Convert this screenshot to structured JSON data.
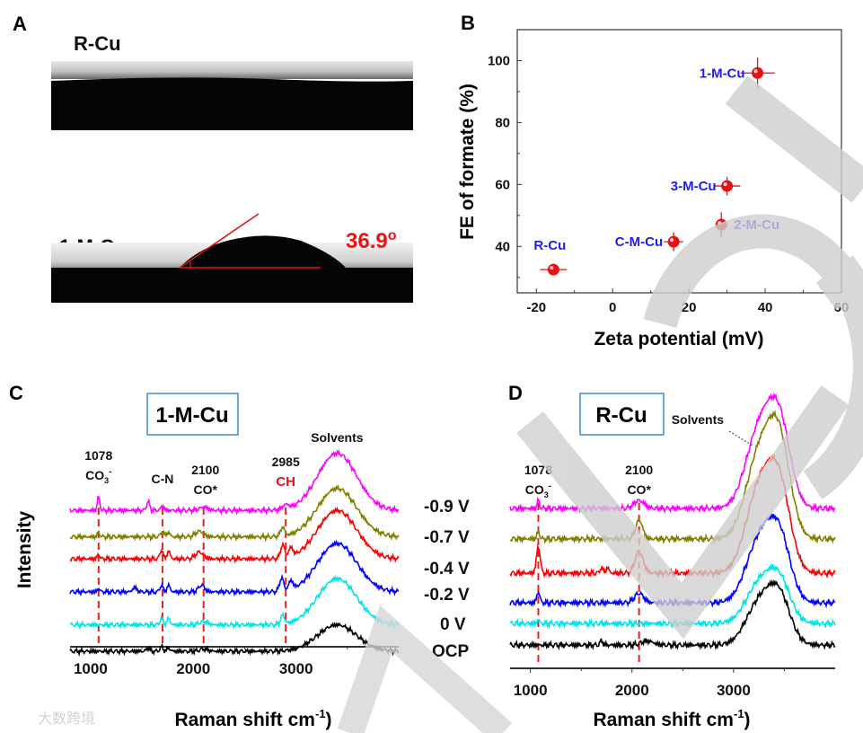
{
  "panel_a": {
    "letter": "A",
    "top_label": "R-Cu",
    "bottom_label": "1-M-Cu",
    "contact_angle": "36.9",
    "degree_symbol": "o"
  },
  "colors": {
    "marker": "#e81010",
    "label_blue": "#1c1cf0",
    "dash_red": "#e82020",
    "box_border": "#3b8fd0",
    "watermark": "#d0d0d0"
  },
  "chart_data": [
    {
      "id": "B",
      "letter": "B",
      "type": "scatter",
      "xlabel": "Zeta potential (mV)",
      "ylabel": "FE of formate (%)",
      "xlim": [
        -25,
        60
      ],
      "ylim": [
        25,
        110
      ],
      "xticks": [
        "-20",
        "0",
        "20",
        "40",
        "60"
      ],
      "xtick_values": [
        -20,
        0,
        20,
        40,
        60
      ],
      "yticks": [
        "40",
        "60",
        "80",
        "100"
      ],
      "ytick_values": [
        40,
        60,
        80,
        100
      ],
      "points": [
        {
          "label": "R-Cu",
          "x": -15.5,
          "y": 32.5,
          "xerr": 3.5,
          "yerr": 1.5
        },
        {
          "label": "C-M-Cu",
          "x": 16,
          "y": 41.5,
          "xerr": 2.5,
          "yerr": 3
        },
        {
          "label": "2-M-Cu",
          "x": 28.5,
          "y": 47,
          "xerr": 1.5,
          "yerr": 4
        },
        {
          "label": "3-M-Cu",
          "x": 30,
          "y": 59.5,
          "xerr": 3.5,
          "yerr": 3
        },
        {
          "label": "1-M-Cu",
          "x": 38,
          "y": 96,
          "xerr": 4.5,
          "yerr": 5
        }
      ]
    },
    {
      "id": "C",
      "letter": "C",
      "type": "line",
      "title": "1-M-Cu",
      "xlabel": "Raman shift",
      "xlabel_unit": "cm",
      "xlabel_exp": "-1",
      "ylabel": "Intensity",
      "xlim": [
        800,
        4000
      ],
      "ylim": [
        0,
        100
      ],
      "xticks": [
        "1000",
        "2000",
        "3000"
      ],
      "xtick_values": [
        1000,
        2000,
        3000
      ],
      "annotations": [
        {
          "lines": [
            "1078",
            "CO"
          ],
          "sub": "3",
          "sup": "-",
          "x": 1078
        },
        {
          "lines": [
            "C-N"
          ],
          "x": 1700
        },
        {
          "lines": [
            "2100",
            "CO*"
          ],
          "x": 2100
        },
        {
          "lines": [
            "2985",
            "CH"
          ],
          "x": 2900
        },
        {
          "lines": [
            "Solvents"
          ],
          "x": 3400
        }
      ],
      "dashed_markers": [
        1078,
        1700,
        2100,
        2900
      ],
      "series": [
        {
          "name": "-0.9 V",
          "color": "#ff00ff",
          "offset": 64,
          "peaks": [
            [
              1078,
              6,
              12
            ],
            [
              1560,
              4,
              15
            ],
            [
              1700,
              2,
              15
            ],
            [
              2100,
              1.5,
              40
            ],
            [
              2900,
              2,
              30
            ],
            [
              3400,
              26,
              190
            ]
          ]
        },
        {
          "name": "-0.7 V",
          "color": "#808000",
          "offset": 52,
          "peaks": [
            [
              1078,
              2,
              12
            ],
            [
              1700,
              2,
              20
            ],
            [
              1760,
              2,
              15
            ],
            [
              2060,
              2.5,
              40
            ],
            [
              2870,
              4,
              20
            ],
            [
              3400,
              22,
              190
            ]
          ]
        },
        {
          "name": "-0.4 V",
          "color": "#ff0000",
          "offset": 42,
          "peaks": [
            [
              1078,
              2,
              12
            ],
            [
              1690,
              4,
              15
            ],
            [
              1760,
              3.5,
              15
            ],
            [
              2060,
              3,
              40
            ],
            [
              2870,
              6,
              20
            ],
            [
              2950,
              4,
              20
            ],
            [
              3400,
              22,
              190
            ]
          ]
        },
        {
          "name": "-0.2 V",
          "color": "#0000ff",
          "offset": 27,
          "peaks": [
            [
              1078,
              1.5,
              12
            ],
            [
              1430,
              2,
              20
            ],
            [
              1690,
              3,
              15
            ],
            [
              1760,
              3,
              15
            ],
            [
              2080,
              3,
              30
            ],
            [
              2860,
              6,
              20
            ],
            [
              2950,
              4,
              20
            ],
            [
              3400,
              22,
              190
            ]
          ]
        },
        {
          "name": "0 V",
          "color": "#00e5e5",
          "offset": 12,
          "peaks": [
            [
              1690,
              3,
              15
            ],
            [
              1760,
              3,
              15
            ],
            [
              2100,
              1.5,
              40
            ],
            [
              2870,
              4,
              20
            ],
            [
              3400,
              21,
              190
            ]
          ]
        },
        {
          "name": "OCP",
          "color": "#000000",
          "offset": 0,
          "peaks": [
            [
              1560,
              1.5,
              15
            ],
            [
              1690,
              2,
              15
            ],
            [
              1760,
              1.5,
              15
            ],
            [
              2100,
              1,
              40
            ],
            [
              3400,
              12,
              190
            ]
          ]
        }
      ]
    },
    {
      "id": "D",
      "letter": "D",
      "type": "line",
      "title": "R-Cu",
      "xlabel": "Raman shift",
      "xlabel_unit": "cm",
      "xlabel_exp": "-1",
      "xlim": [
        800,
        4000
      ],
      "ylim": [
        0,
        100
      ],
      "xticks": [
        "1000",
        "2000",
        "3000"
      ],
      "xtick_values": [
        1000,
        2000,
        3000
      ],
      "annotations": [
        {
          "lines": [
            "1078",
            "CO"
          ],
          "sub": "3",
          "sup": "-",
          "x": 1078
        },
        {
          "lines": [
            "2100",
            "CO*"
          ],
          "x": 2070
        },
        {
          "lines": [
            "Solvents"
          ],
          "x": 3000
        }
      ],
      "dashed_markers": [
        1078,
        2070
      ],
      "series": [
        {
          "name": "-0.9 V",
          "color": "#ff00ff",
          "offset": 52,
          "peaks": [
            [
              1078,
              3,
              12
            ],
            [
              2070,
              3,
              50
            ],
            [
              3250,
              28,
              130
            ],
            [
              3450,
              30,
              110
            ]
          ]
        },
        {
          "name": "-0.7 V",
          "color": "#808000",
          "offset": 40.7,
          "peaks": [
            [
              1078,
              3,
              12
            ],
            [
              2070,
              7,
              35
            ],
            [
              3250,
              30,
              130
            ],
            [
              3450,
              34,
              110
            ]
          ]
        },
        {
          "name": "-0.4 V",
          "color": "#ff0000",
          "offset": 28,
          "peaks": [
            [
              1078,
              10,
              18
            ],
            [
              2070,
              8,
              40
            ],
            [
              1700,
              2,
              15
            ],
            [
              1760,
              2,
              15
            ],
            [
              3250,
              30,
              130
            ],
            [
              3450,
              30,
              110
            ]
          ]
        },
        {
          "name": "-0.2 V",
          "color": "#0000ff",
          "offset": 17,
          "peaks": [
            [
              1078,
              4,
              15
            ],
            [
              2070,
              3.5,
              45
            ],
            [
              3250,
              22,
              130
            ],
            [
              3450,
              23,
              110
            ]
          ]
        },
        {
          "name": "0 V",
          "color": "#00e5e5",
          "offset": 9.3,
          "peaks": [
            [
              1078,
              1.5,
              12
            ],
            [
              3250,
              14,
              130
            ],
            [
              3450,
              15,
              110
            ]
          ]
        },
        {
          "name": "OCP",
          "color": "#000000",
          "offset": 1.3,
          "peaks": [
            [
              1700,
              1.5,
              15
            ],
            [
              2150,
              1.5,
              60
            ],
            [
              3250,
              15,
              130
            ],
            [
              3450,
              17,
              110
            ]
          ]
        }
      ]
    }
  ],
  "voltage_labels": [
    "-0.9 V",
    "-0.7 V",
    "-0.4 V",
    "-0.2 V",
    "0 V",
    "OCP"
  ],
  "watermark_text": "大数跨境"
}
